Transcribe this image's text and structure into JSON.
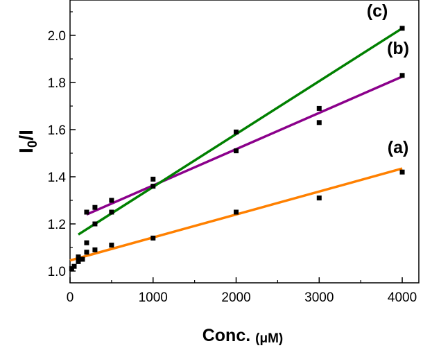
{
  "chart_data": {
    "type": "scatter",
    "xlabel_main": "Conc. ",
    "xlabel_unit": "(μM)",
    "ylabel_main": "I",
    "ylabel_sub": "0",
    "ylabel_tail": "/I",
    "xlim": [
      0,
      4200
    ],
    "ylim": [
      0.95,
      2.15
    ],
    "xticks": [
      0,
      1000,
      2000,
      3000,
      4000
    ],
    "yticks": [
      1.0,
      1.2,
      1.4,
      1.6,
      1.8,
      2.0
    ],
    "ytick_labels": [
      "1.0",
      "1.2",
      "1.4",
      "1.6",
      "1.8",
      "2.0"
    ],
    "grid": false,
    "series": [
      {
        "name": "(a)",
        "color": "#ff8000",
        "x": [
          20,
          50,
          100,
          150,
          200,
          300,
          500,
          1000,
          2000,
          3000,
          4000
        ],
        "y": [
          1.01,
          1.02,
          1.04,
          1.05,
          1.08,
          1.09,
          1.11,
          1.14,
          1.25,
          1.31,
          1.42
        ],
        "fit": [
          [
            0,
            1.045
          ],
          [
            4000,
            1.435
          ]
        ],
        "label_at": [
          3950,
          1.5
        ]
      },
      {
        "name": "(b)",
        "color": "#8b008b",
        "x": [
          200,
          300,
          500,
          1000,
          2000,
          3000,
          4000
        ],
        "y": [
          1.25,
          1.27,
          1.3,
          1.39,
          1.51,
          1.63,
          1.83
        ],
        "fit": [
          [
            200,
            1.24
          ],
          [
            4000,
            1.825
          ]
        ],
        "label_at": [
          3950,
          1.92
        ]
      },
      {
        "name": "(c)",
        "color": "#008000",
        "x": [
          100,
          200,
          300,
          500,
          1000,
          2000,
          3000,
          4000
        ],
        "y": [
          1.06,
          1.12,
          1.2,
          1.25,
          1.36,
          1.59,
          1.69,
          2.03
        ],
        "fit": [
          [
            100,
            1.155
          ],
          [
            4000,
            2.03
          ]
        ],
        "label_at": [
          3700,
          2.08
        ]
      }
    ]
  }
}
